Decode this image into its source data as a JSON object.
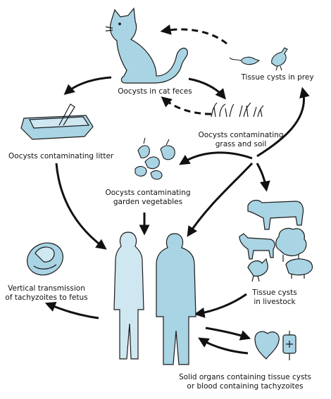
{
  "labels": {
    "cat_feces": "Oocysts in cat feces",
    "prey": "Tissue cysts in prey",
    "grass_1": "Oocysts contaminating",
    "grass_2": "grass and soil",
    "litter": "Oocysts contaminating litter",
    "veg_1": "Oocysts contaminating",
    "veg_2": "garden vegetables",
    "fetus_1": "Vertical transmission",
    "fetus_2": "of tachyzoites to fetus",
    "livestock_1": "Tissue cysts",
    "livestock_2": "in livestock",
    "organs_1": "Solid organs containing tissue cysts",
    "organs_2": "or blood containing tachyzoites"
  },
  "colors": {
    "fill": "#a9d4e4",
    "fill_light": "#cfe7f1",
    "stroke": "#1a1a1a",
    "arrow": "#111111"
  },
  "icons": [
    "cat-icon",
    "mouse-icon",
    "bird-icon",
    "grass-icon",
    "litter-box-icon",
    "vegetables-icon",
    "woman-icon",
    "man-icon",
    "fetus-icon",
    "cow-icon",
    "goat-icon",
    "sheep-icon",
    "chicken-icon",
    "pig-icon",
    "heart-organ-icon",
    "blood-bag-icon"
  ]
}
